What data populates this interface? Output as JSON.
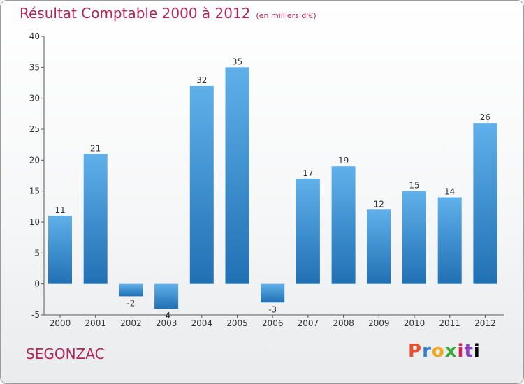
{
  "chart_data": {
    "type": "bar",
    "title": "Résultat Comptable 2000 à 2012",
    "subtitle": "(en milliers d'€)",
    "categories": [
      "2000",
      "2001",
      "2002",
      "2003",
      "2004",
      "2005",
      "2006",
      "2007",
      "2008",
      "2009",
      "2010",
      "2011",
      "2012"
    ],
    "values": [
      11,
      21,
      -2,
      -4,
      32,
      35,
      -3,
      17,
      19,
      12,
      15,
      14,
      26
    ],
    "ylim": [
      -5,
      40
    ],
    "yticks": [
      -5,
      0,
      5,
      10,
      15,
      20,
      25,
      30,
      35,
      40
    ],
    "xlabel": "",
    "ylabel": "",
    "grid": false,
    "colors": {
      "bar_light": "#5fb0ea",
      "bar_dark": "#2070b4",
      "title": "#b4235a"
    }
  },
  "place_name": "SEGONZAC",
  "logo": {
    "letters": [
      "P",
      "r",
      "o",
      "x",
      "i",
      "t",
      "i"
    ]
  }
}
